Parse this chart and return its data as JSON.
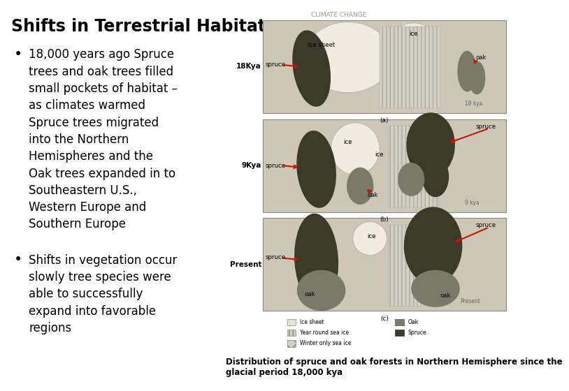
{
  "title": "Shifts in Terrestrial Habitat",
  "title_fontsize": 17,
  "title_fontweight": "bold",
  "background_color": "#ffffff",
  "bullet1_lines": [
    "18,000 years ago Spruce",
    "trees and oak trees filled",
    "small pockets of habitat –",
    "as climates warmed",
    "Spruce trees migrated",
    "into the Northern",
    "Hemispheres and the",
    "Oak trees expanded in to",
    "Southeastern U.S.,",
    "Western Europe and",
    "Southern Europe"
  ],
  "bullet2_lines": [
    "Shifts in vegetation occur",
    "slowly tree species were",
    "able to successfully",
    "expand into favorable",
    "regions"
  ],
  "body_fontsize": 12,
  "climate_change_label": "CLIMATE CHANGE",
  "caption": "Distribution of spruce and oak forests in Northern Hemisphere since the\nglacial period 18,000 kya",
  "caption_fontsize": 8.5,
  "map_bg": "#ccc8b8",
  "land_bg": "#b8b4a4",
  "ice_sheet_color": "#e8e4d4",
  "ice_color": "#dedad0",
  "sea_ice_hatch_color": "#c8c4b4",
  "spruce_color": "#3a3a2a",
  "oak_color": "#7a7a6a",
  "water_color": "#d0cdc0",
  "arrow_color": "#cc1100",
  "panel_edge_color": "#888880",
  "label_color": "#333330",
  "time_label_color": "#666660"
}
